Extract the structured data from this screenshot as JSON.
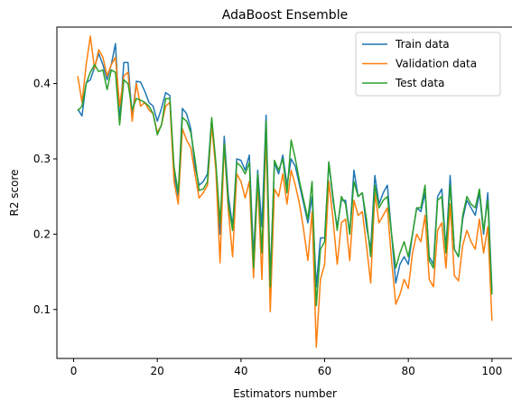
{
  "chart_data": {
    "type": "line",
    "title": "AdaBoost Ensemble",
    "xlabel": "Estimators number",
    "ylabel": "R2 score",
    "xlim": [
      -4,
      105
    ],
    "ylim": [
      0.035,
      0.475
    ],
    "xticks": [
      0,
      20,
      40,
      60,
      80,
      100
    ],
    "yticks": [
      0.1,
      0.2,
      0.3,
      0.4
    ],
    "ytick_labels": [
      "0.1",
      "0.2",
      "0.3",
      "0.4"
    ],
    "grid": false,
    "legend_position": "top-right",
    "x": [
      1,
      2,
      3,
      4,
      5,
      6,
      7,
      8,
      9,
      10,
      11,
      12,
      13,
      14,
      15,
      16,
      17,
      18,
      19,
      20,
      21,
      22,
      23,
      24,
      25,
      26,
      27,
      28,
      29,
      30,
      31,
      32,
      33,
      34,
      35,
      36,
      37,
      38,
      39,
      40,
      41,
      42,
      43,
      44,
      45,
      46,
      47,
      48,
      49,
      50,
      51,
      52,
      53,
      54,
      55,
      56,
      57,
      58,
      59,
      60,
      61,
      62,
      63,
      64,
      65,
      66,
      67,
      68,
      69,
      70,
      71,
      72,
      73,
      74,
      75,
      76,
      77,
      78,
      79,
      80,
      81,
      82,
      83,
      84,
      85,
      86,
      87,
      88,
      89,
      90,
      91,
      92,
      93,
      94,
      95,
      96,
      97,
      98,
      99,
      100
    ],
    "series": [
      {
        "name": "Train data",
        "color": "#1f77b4",
        "values": [
          0.366,
          0.357,
          0.401,
          0.405,
          0.422,
          0.44,
          0.425,
          0.405,
          0.425,
          0.453,
          0.35,
          0.428,
          0.428,
          0.355,
          0.403,
          0.402,
          0.39,
          0.375,
          0.37,
          0.35,
          0.367,
          0.388,
          0.384,
          0.28,
          0.25,
          0.367,
          0.36,
          0.34,
          0.29,
          0.265,
          0.27,
          0.28,
          0.352,
          0.29,
          0.2,
          0.33,
          0.25,
          0.21,
          0.3,
          0.298,
          0.285,
          0.305,
          0.17,
          0.285,
          0.21,
          0.358,
          0.14,
          0.295,
          0.28,
          0.305,
          0.265,
          0.3,
          0.29,
          0.265,
          0.24,
          0.215,
          0.25,
          0.13,
          0.195,
          0.195,
          0.295,
          0.245,
          0.21,
          0.245,
          0.245,
          0.2,
          0.285,
          0.25,
          0.255,
          0.21,
          0.18,
          0.278,
          0.24,
          0.255,
          0.265,
          0.2,
          0.135,
          0.16,
          0.17,
          0.16,
          0.2,
          0.235,
          0.23,
          0.255,
          0.17,
          0.16,
          0.25,
          0.26,
          0.18,
          0.278,
          0.18,
          0.17,
          0.22,
          0.245,
          0.235,
          0.225,
          0.255,
          0.2,
          0.255,
          0.125
        ]
      },
      {
        "name": "Validation data",
        "color": "#ff7f0e",
        "values": [
          0.41,
          0.375,
          0.425,
          0.463,
          0.42,
          0.445,
          0.435,
          0.41,
          0.425,
          0.435,
          0.37,
          0.41,
          0.415,
          0.35,
          0.4,
          0.37,
          0.375,
          0.365,
          0.36,
          0.335,
          0.345,
          0.37,
          0.375,
          0.27,
          0.24,
          0.34,
          0.325,
          0.315,
          0.28,
          0.248,
          0.255,
          0.265,
          0.345,
          0.285,
          0.162,
          0.32,
          0.23,
          0.17,
          0.28,
          0.27,
          0.248,
          0.27,
          0.142,
          0.27,
          0.14,
          0.335,
          0.097,
          0.26,
          0.25,
          0.28,
          0.24,
          0.285,
          0.265,
          0.24,
          0.205,
          0.165,
          0.23,
          0.05,
          0.14,
          0.16,
          0.27,
          0.22,
          0.16,
          0.215,
          0.22,
          0.165,
          0.245,
          0.225,
          0.23,
          0.185,
          0.135,
          0.255,
          0.215,
          0.225,
          0.235,
          0.165,
          0.107,
          0.12,
          0.14,
          0.128,
          0.175,
          0.2,
          0.19,
          0.225,
          0.14,
          0.13,
          0.205,
          0.215,
          0.155,
          0.24,
          0.145,
          0.138,
          0.185,
          0.205,
          0.19,
          0.18,
          0.22,
          0.175,
          0.21,
          0.085
        ]
      },
      {
        "name": "Test data",
        "color": "#2ca02c",
        "values": [
          0.364,
          0.37,
          0.4,
          0.415,
          0.425,
          0.416,
          0.418,
          0.392,
          0.418,
          0.415,
          0.345,
          0.405,
          0.4,
          0.365,
          0.38,
          0.378,
          0.375,
          0.37,
          0.36,
          0.332,
          0.345,
          0.38,
          0.38,
          0.29,
          0.255,
          0.355,
          0.35,
          0.335,
          0.3,
          0.258,
          0.26,
          0.27,
          0.355,
          0.295,
          0.215,
          0.32,
          0.24,
          0.205,
          0.295,
          0.29,
          0.28,
          0.295,
          0.155,
          0.28,
          0.175,
          0.35,
          0.13,
          0.298,
          0.285,
          0.3,
          0.255,
          0.325,
          0.3,
          0.27,
          0.245,
          0.22,
          0.27,
          0.105,
          0.18,
          0.19,
          0.296,
          0.25,
          0.205,
          0.25,
          0.24,
          0.2,
          0.27,
          0.25,
          0.255,
          0.22,
          0.17,
          0.265,
          0.235,
          0.245,
          0.25,
          0.2,
          0.155,
          0.175,
          0.19,
          0.17,
          0.2,
          0.235,
          0.235,
          0.265,
          0.165,
          0.155,
          0.245,
          0.25,
          0.175,
          0.265,
          0.18,
          0.17,
          0.225,
          0.25,
          0.24,
          0.235,
          0.26,
          0.205,
          0.245,
          0.12
        ]
      }
    ]
  }
}
